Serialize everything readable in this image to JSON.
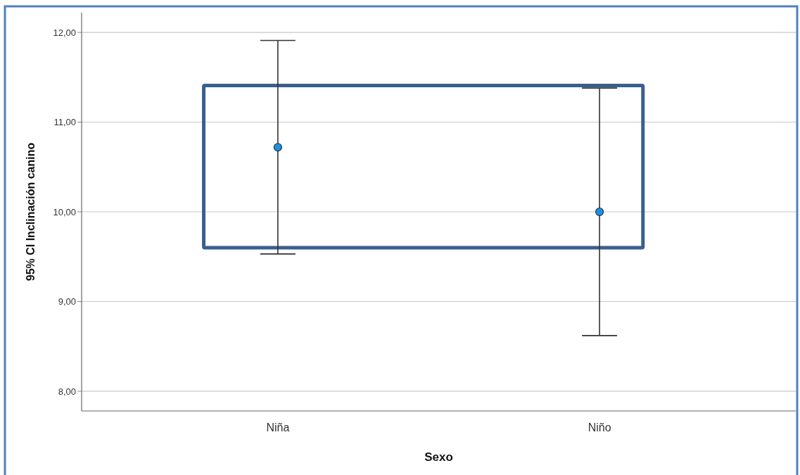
{
  "chart_data": {
    "type": "scatter",
    "xlabel": "Sexo",
    "ylabel": "95% CI Inclinación canino",
    "categories": [
      "Niña",
      "Niño"
    ],
    "values": [
      10.72,
      10
    ],
    "errors": [
      [
        9.53,
        11.91
      ],
      [
        8.62,
        11.38
      ]
    ],
    "color": "#1e8fe0",
    "marker": "circle",
    "ylim": [
      7.78,
      12.22
    ],
    "yticks": [
      {
        "value": 8,
        "label": "8,00"
      },
      {
        "value": 9,
        "label": "9,00"
      },
      {
        "value": 10,
        "label": "10,00"
      },
      {
        "value": 11,
        "label": "11,00"
      },
      {
        "value": 12,
        "label": "12,00"
      }
    ],
    "grid": "y"
  }
}
